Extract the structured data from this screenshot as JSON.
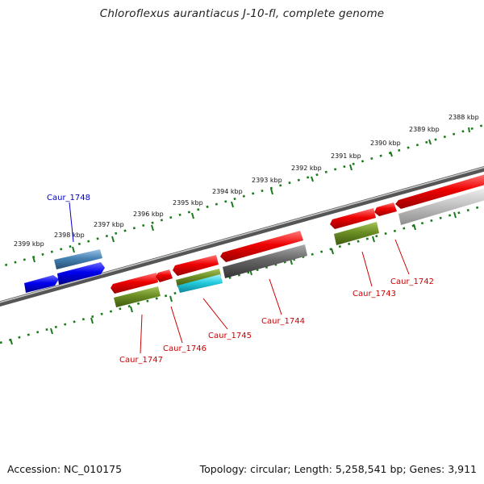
{
  "title": "Chloroflexus aurantiacus J-10-fl, complete genome",
  "footer": {
    "accession": "Accession: NC_010175",
    "summary": "Topology: circular; Length: 5,258,541 bp; Genes: 3,911"
  },
  "colors": {
    "backbone": "#777777",
    "scale_dots": "#1a7a1a",
    "red_cds": "#ee0000",
    "olive_cds": "#6b8e23",
    "cyan_cds": "#22ccdd",
    "blue_cds": "#0000ee",
    "steelblue_cds": "#4682b4",
    "dark_gray_cds": "#666666",
    "light_gray_cds": "#bbbbbb",
    "red_label": "#cc0000",
    "blue_label": "#0000cc"
  },
  "ruler_labels": [
    "2388 kbp",
    "2389 kbp",
    "2390 kbp",
    "2391 kbp",
    "2392 kbp",
    "2393 kbp",
    "2394 kbp",
    "2395 kbp",
    "2396 kbp",
    "2397 kbp",
    "2398 kbp",
    "2399 kbp"
  ],
  "gene_labels": {
    "caur_1742": "Caur_1742",
    "caur_1743": "Caur_1743",
    "caur_1744": "Caur_1744",
    "caur_1745": "Caur_1745",
    "caur_1746": "Caur_1746",
    "caur_1747": "Caur_1747",
    "caur_1748": "Caur_1748"
  }
}
